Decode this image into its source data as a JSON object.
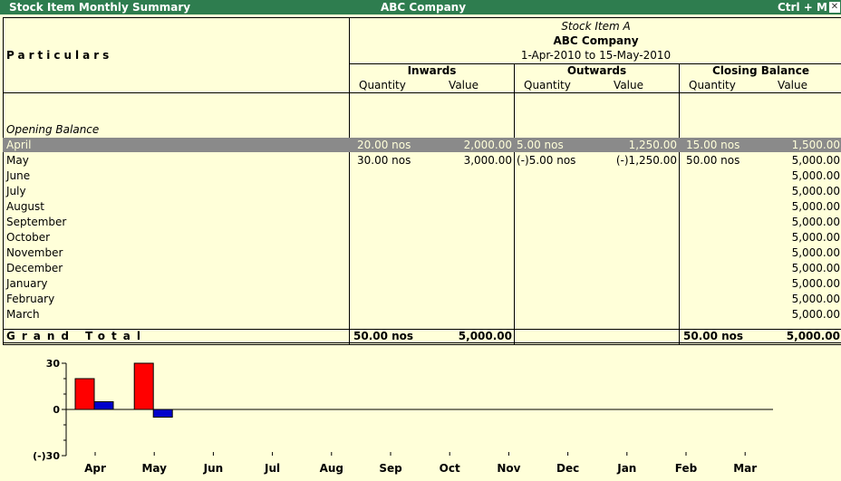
{
  "window": {
    "title": "Stock Item Monthly Summary",
    "company": "ABC Company",
    "shortcut": "Ctrl + M",
    "close_glyph": "✕"
  },
  "header": {
    "particulars": "Particulars",
    "item_name": "Stock Item A",
    "company": "ABC Company",
    "period": "1-Apr-2010 to 15-May-2010",
    "inwards": "Inwards",
    "outwards": "Outwards",
    "closing": "Closing Balance",
    "quantity": "Quantity",
    "value": "Value"
  },
  "opening_balance": "Opening Balance",
  "rows": [
    {
      "month": "April",
      "in_qty": "20.00 nos",
      "in_val": "2,000.00",
      "out_qty": "5.00 nos",
      "out_val": "1,250.00",
      "cl_qty": "15.00 nos",
      "cl_val": "1,500.00"
    },
    {
      "month": "May",
      "in_qty": "30.00 nos",
      "in_val": "3,000.00",
      "out_qty": "(-)5.00 nos",
      "out_val": "(-)1,250.00",
      "cl_qty": "50.00 nos",
      "cl_val": "5,000.00"
    },
    {
      "month": "June",
      "in_qty": "",
      "in_val": "",
      "out_qty": "",
      "out_val": "",
      "cl_qty": "",
      "cl_val": "5,000.00"
    },
    {
      "month": "July",
      "in_qty": "",
      "in_val": "",
      "out_qty": "",
      "out_val": "",
      "cl_qty": "",
      "cl_val": "5,000.00"
    },
    {
      "month": "August",
      "in_qty": "",
      "in_val": "",
      "out_qty": "",
      "out_val": "",
      "cl_qty": "",
      "cl_val": "5,000.00"
    },
    {
      "month": "September",
      "in_qty": "",
      "in_val": "",
      "out_qty": "",
      "out_val": "",
      "cl_qty": "",
      "cl_val": "5,000.00"
    },
    {
      "month": "October",
      "in_qty": "",
      "in_val": "",
      "out_qty": "",
      "out_val": "",
      "cl_qty": "",
      "cl_val": "5,000.00"
    },
    {
      "month": "November",
      "in_qty": "",
      "in_val": "",
      "out_qty": "",
      "out_val": "",
      "cl_qty": "",
      "cl_val": "5,000.00"
    },
    {
      "month": "December",
      "in_qty": "",
      "in_val": "",
      "out_qty": "",
      "out_val": "",
      "cl_qty": "",
      "cl_val": "5,000.00"
    },
    {
      "month": "January",
      "in_qty": "",
      "in_val": "",
      "out_qty": "",
      "out_val": "",
      "cl_qty": "",
      "cl_val": "5,000.00"
    },
    {
      "month": "February",
      "in_qty": "",
      "in_val": "",
      "out_qty": "",
      "out_val": "",
      "cl_qty": "",
      "cl_val": "5,000.00"
    },
    {
      "month": "March",
      "in_qty": "",
      "in_val": "",
      "out_qty": "",
      "out_val": "",
      "cl_qty": "",
      "cl_val": "5,000.00"
    }
  ],
  "grand_total": {
    "label": "Grand Total",
    "in_qty": "50.00 nos",
    "in_val": "5,000.00",
    "cl_qty": "50.00 nos",
    "cl_val": "5,000.00"
  },
  "colors": {
    "title_bar": "#2e7d4f",
    "background": "#ffffd9",
    "highlight": "#8a8a8a",
    "inwards_bar": "#ff0000",
    "outwards_bar": "#0000cc"
  },
  "chart_data": {
    "type": "bar",
    "categories": [
      "Apr",
      "May",
      "Jun",
      "Jul",
      "Aug",
      "Sep",
      "Oct",
      "Nov",
      "Dec",
      "Jan",
      "Feb",
      "Mar"
    ],
    "series": [
      {
        "values": [
          20,
          30,
          0,
          0,
          0,
          0,
          0,
          0,
          0,
          0,
          0,
          0
        ]
      },
      {
        "values": [
          5,
          -5,
          0,
          0,
          0,
          0,
          0,
          0,
          0,
          0,
          0,
          0
        ]
      }
    ],
    "ylim": [
      -30,
      30
    ],
    "ytick_labels": [
      "30",
      "0",
      "(-)30"
    ],
    "ytick_values": [
      30,
      0,
      -30
    ]
  }
}
